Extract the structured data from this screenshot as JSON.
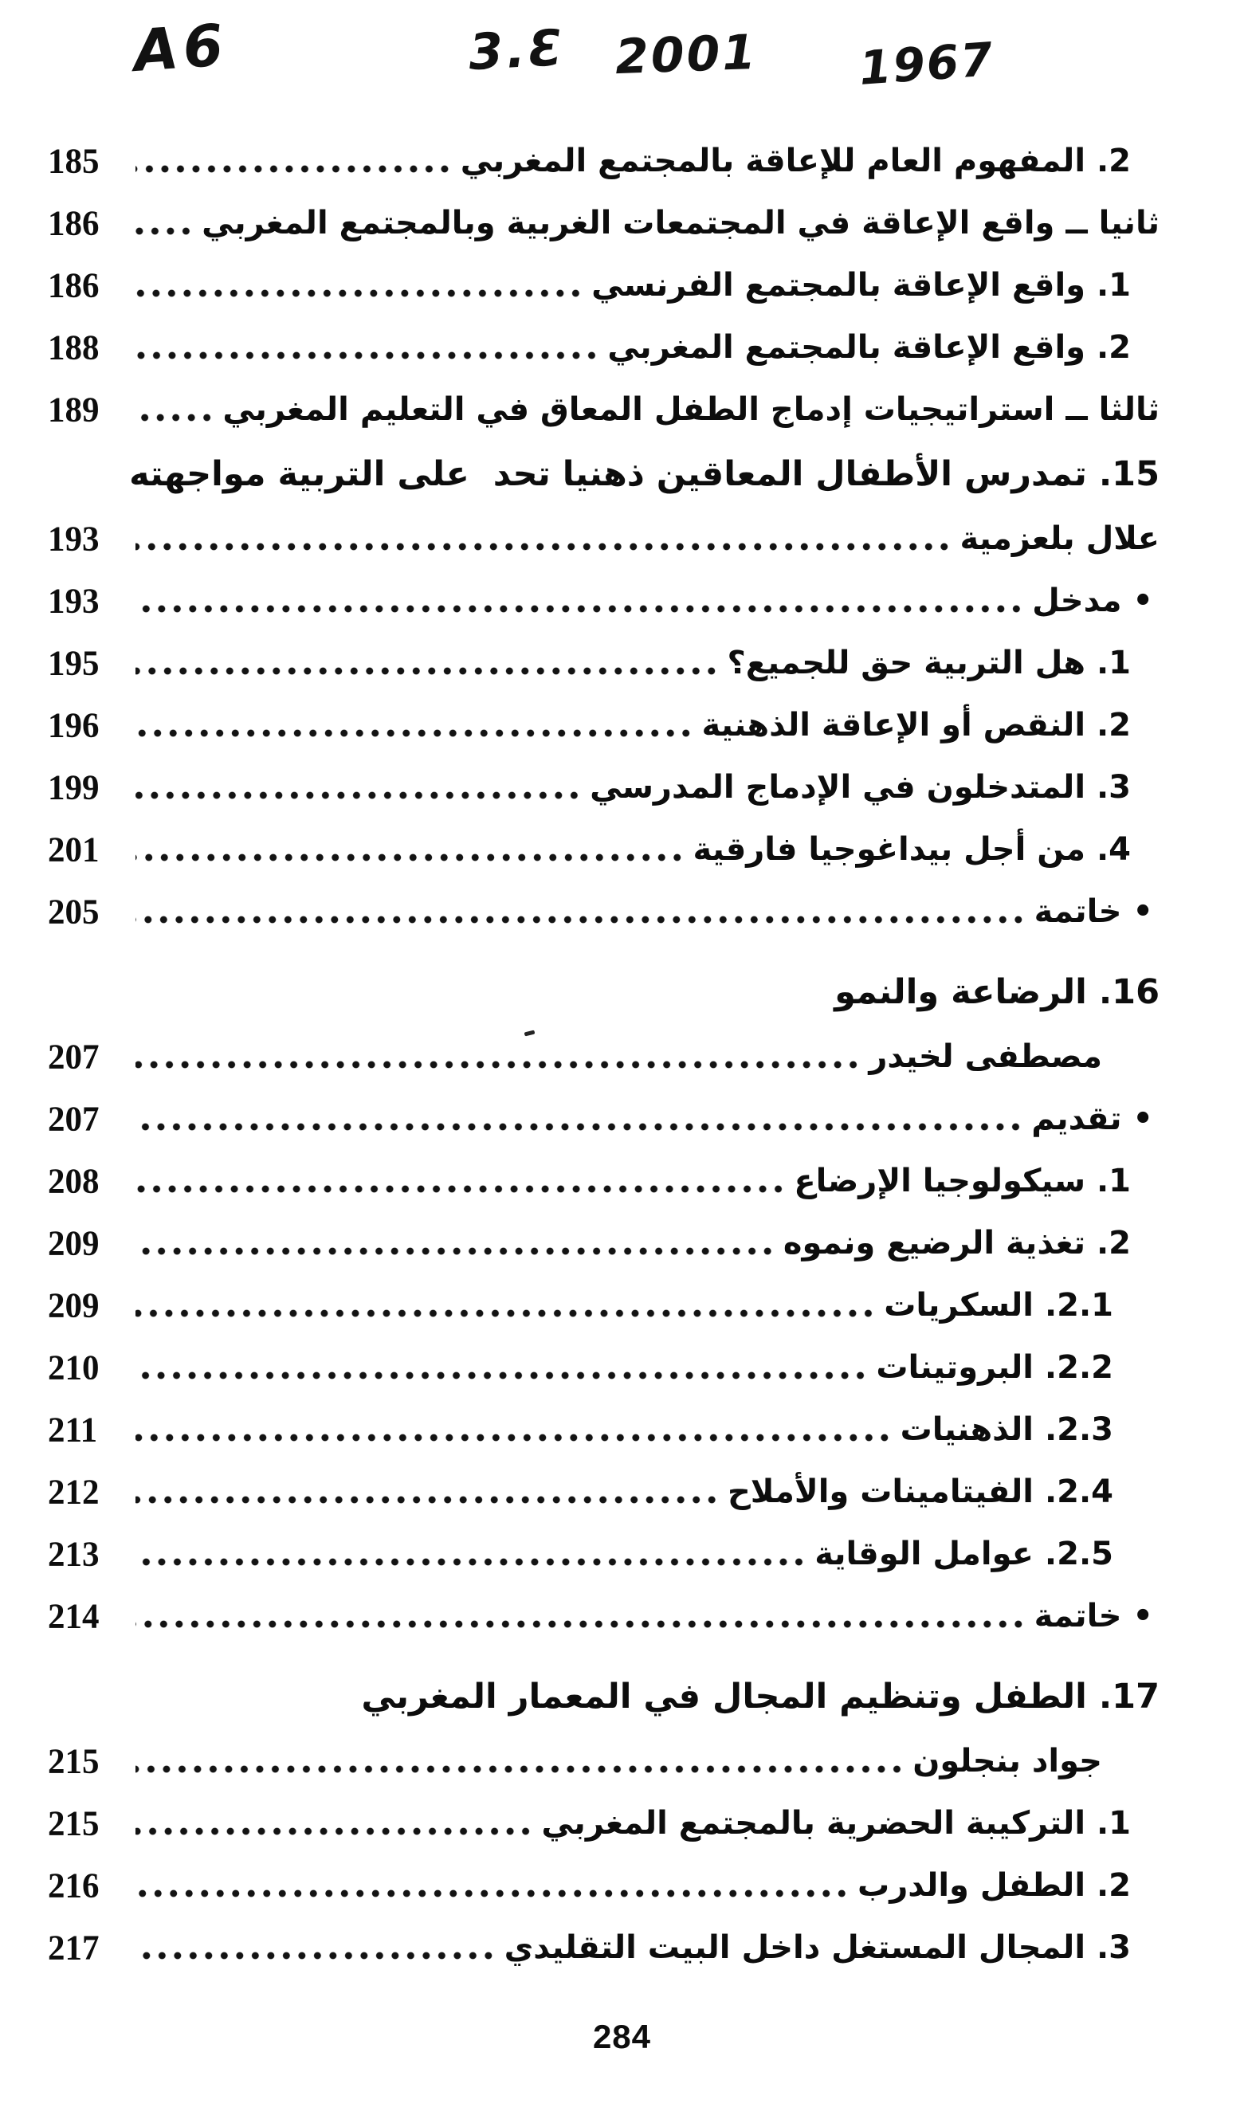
{
  "handwriting": {
    "mark1": "A6",
    "mark2": "3.Ɛ",
    "mark3": "2001",
    "mark4": "1967"
  },
  "toc": {
    "entries": [
      {
        "kind": "item",
        "level": 1,
        "text": "2. المفهوم العام للإعاقة بالمجتمع المغربي",
        "page": "185"
      },
      {
        "kind": "item",
        "level": 0,
        "text": "ثانيا ــ واقع الإعاقة في المجتمعات الغربية وبالمجتمع المغربي",
        "page": "186"
      },
      {
        "kind": "item",
        "level": 1,
        "text": "1. واقع الإعاقة بالمجتمع الفرنسي",
        "page": "186"
      },
      {
        "kind": "item",
        "level": 1,
        "text": "2. واقع الإعاقة بالمجتمع المغربي",
        "page": "188"
      },
      {
        "kind": "item",
        "level": 0,
        "text": "ثالثا ــ استراتيجيات إدماج الطفل المعاق في التعليم المغربي",
        "page": "189"
      },
      {
        "kind": "heading",
        "level": 0,
        "text": "15. تمدرس الأطفال المعاقين ذهنيا تحد  على التربية مواجهته"
      },
      {
        "kind": "author",
        "level": 0,
        "text": "علال بلعزمية",
        "page": "193"
      },
      {
        "kind": "bullet",
        "level": 0,
        "text": "• مدخل",
        "page": "193"
      },
      {
        "kind": "item",
        "level": 1,
        "text": "1. هل التربية حق للجميع؟",
        "page": "195"
      },
      {
        "kind": "item",
        "level": 1,
        "text": "2. النقص أو الإعاقة الذهنية",
        "page": "196"
      },
      {
        "kind": "item",
        "level": 1,
        "text": "3. المتدخلون في الإدماج المدرسي",
        "page": "199"
      },
      {
        "kind": "item",
        "level": 1,
        "text": "4. من أجل بيداغوجيا فارقية",
        "page": "201"
      },
      {
        "kind": "bullet",
        "level": 0,
        "text": "• خاتمة",
        "page": "205"
      },
      {
        "kind": "heading",
        "level": 0,
        "text": "16. الرضاعة والنمو",
        "gap": true
      },
      {
        "kind": "author",
        "level": 1,
        "text": "مصطفى لخيدر",
        "page": "207"
      },
      {
        "kind": "bullet",
        "level": 0,
        "text": "• تقديم",
        "page": "207"
      },
      {
        "kind": "item",
        "level": 1,
        "text": "1. سيكولوجيا الإرضاع",
        "page": "208"
      },
      {
        "kind": "item",
        "level": 1,
        "text": "2. تغذية الرضيع ونموه",
        "page": "209"
      },
      {
        "kind": "item",
        "level": 2,
        "text": "2.1. السكريات",
        "page": "209"
      },
      {
        "kind": "item",
        "level": 2,
        "text": "2.2. البروتينات",
        "page": "210"
      },
      {
        "kind": "item",
        "level": 2,
        "text": "2.3. الذهنيات",
        "page": "211"
      },
      {
        "kind": "item",
        "level": 2,
        "text": "2.4. الفيتامينات والأملاح",
        "page": "212"
      },
      {
        "kind": "item",
        "level": 2,
        "text": "2.5. عوامل الوقاية",
        "page": "213"
      },
      {
        "kind": "bullet",
        "level": 0,
        "text": "• خاتمة",
        "page": "214"
      },
      {
        "kind": "heading",
        "level": 0,
        "text": "17. الطفل وتنظيم المجال في المعمار المغربي",
        "gap": true
      },
      {
        "kind": "author",
        "level": 1,
        "text": "جواد بنجلون",
        "page": "215"
      },
      {
        "kind": "item",
        "level": 1,
        "text": "1. التركيبة الحضرية بالمجتمع المغربي",
        "page": "215"
      },
      {
        "kind": "item",
        "level": 1,
        "text": "2. الطفل والدرب",
        "page": "216"
      },
      {
        "kind": "item",
        "level": 1,
        "text": "3. المجال المستغل داخل البيت التقليدي",
        "page": "217"
      }
    ]
  },
  "footer": {
    "page_number": "284"
  }
}
